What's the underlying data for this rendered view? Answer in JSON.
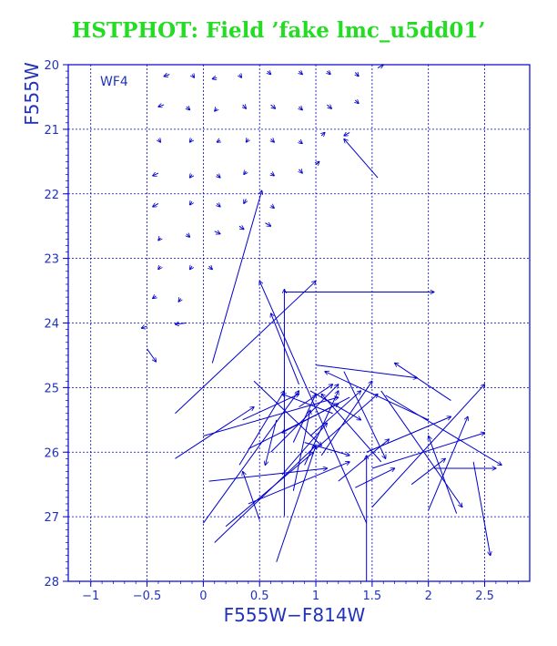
{
  "chart_data": {
    "type": "scatter",
    "title": "HSTPHOT: Field ’fake lmc_u5dd01’",
    "panel_label": "WF4",
    "xlabel": "F555W−F814W",
    "ylabel": "F555W",
    "xlim": [
      -1.2,
      2.9
    ],
    "ylim": [
      28,
      20
    ],
    "y_inverted": true,
    "grid": true,
    "xticks": [
      -1,
      -0.5,
      0,
      0.5,
      1,
      1.5,
      2,
      2.5
    ],
    "xtick_labels": [
      "−1",
      "−0.5",
      "0",
      "0.5",
      "1",
      "1.5",
      "2",
      "2.5"
    ],
    "yticks": [
      20,
      21,
      22,
      23,
      24,
      25,
      26,
      27,
      28
    ],
    "ytick_labels": [
      "20",
      "21",
      "22",
      "23",
      "24",
      "25",
      "26",
      "27",
      "28"
    ],
    "series": [
      {
        "marker": "vector",
        "description_of_values": "each vector goes from input (x0,y0) to measured (x1,y1)",
        "vectors": [
          [
            -0.3,
            20.15,
            -0.35,
            20.18
          ],
          [
            -0.1,
            20.15,
            -0.08,
            20.2
          ],
          [
            0.12,
            20.2,
            0.08,
            20.22
          ],
          [
            0.32,
            20.15,
            0.34,
            20.2
          ],
          [
            0.57,
            20.1,
            0.6,
            20.15
          ],
          [
            0.85,
            20.1,
            0.88,
            20.15
          ],
          [
            1.1,
            20.1,
            1.13,
            20.15
          ],
          [
            1.35,
            20.12,
            1.38,
            20.18
          ],
          [
            1.55,
            20.05,
            1.6,
            20.0
          ],
          [
            -0.35,
            20.62,
            -0.4,
            20.65
          ],
          [
            -0.15,
            20.65,
            -0.12,
            20.7
          ],
          [
            0.12,
            20.68,
            0.1,
            20.72
          ],
          [
            0.35,
            20.62,
            0.38,
            20.68
          ],
          [
            0.6,
            20.62,
            0.64,
            20.68
          ],
          [
            0.85,
            20.65,
            0.88,
            20.7
          ],
          [
            1.1,
            20.62,
            1.14,
            20.68
          ],
          [
            1.35,
            20.55,
            1.38,
            20.6
          ],
          [
            -0.4,
            21.15,
            -0.38,
            21.2
          ],
          [
            -0.1,
            21.15,
            -0.12,
            21.2
          ],
          [
            0.15,
            21.17,
            0.12,
            21.2
          ],
          [
            0.4,
            21.15,
            0.38,
            21.2
          ],
          [
            0.6,
            21.15,
            0.63,
            21.2
          ],
          [
            0.85,
            21.18,
            0.88,
            21.22
          ],
          [
            1.05,
            21.1,
            1.08,
            21.05
          ],
          [
            1.3,
            21.05,
            1.25,
            21.1
          ],
          [
            1.55,
            21.75,
            1.25,
            21.15
          ],
          [
            -0.4,
            21.68,
            -0.45,
            21.72
          ],
          [
            -0.1,
            21.7,
            -0.12,
            21.75
          ],
          [
            0.12,
            21.7,
            0.15,
            21.75
          ],
          [
            0.38,
            21.65,
            0.36,
            21.7
          ],
          [
            0.6,
            21.68,
            0.63,
            21.72
          ],
          [
            0.85,
            21.62,
            0.88,
            21.68
          ],
          [
            1.0,
            21.55,
            1.03,
            21.5
          ],
          [
            -0.4,
            22.15,
            -0.45,
            22.2
          ],
          [
            -0.1,
            22.12,
            -0.12,
            22.17
          ],
          [
            0.12,
            22.15,
            0.15,
            22.2
          ],
          [
            0.38,
            22.08,
            0.36,
            22.15
          ],
          [
            0.6,
            22.18,
            0.63,
            22.22
          ],
          [
            -0.38,
            22.68,
            -0.4,
            22.72
          ],
          [
            -0.15,
            22.62,
            -0.12,
            22.67
          ],
          [
            0.1,
            22.58,
            0.15,
            22.62
          ],
          [
            0.32,
            22.5,
            0.36,
            22.55
          ],
          [
            0.55,
            22.45,
            0.6,
            22.5
          ],
          [
            -0.38,
            23.12,
            -0.4,
            23.17
          ],
          [
            -0.1,
            23.12,
            -0.12,
            23.17
          ],
          [
            0.05,
            23.12,
            0.08,
            23.17
          ],
          [
            -0.42,
            23.58,
            -0.45,
            23.62
          ],
          [
            -0.2,
            23.62,
            -0.22,
            23.67
          ],
          [
            -0.5,
            24.05,
            -0.55,
            24.08
          ],
          [
            -0.15,
            24.0,
            -0.25,
            24.02
          ],
          [
            -0.5,
            24.4,
            -0.42,
            24.6
          ],
          [
            0.08,
            24.62,
            0.52,
            21.95
          ],
          [
            -0.25,
            25.4,
            1.0,
            23.35
          ],
          [
            0.72,
            26.99,
            0.72,
            23.48
          ],
          [
            0.32,
            26.2,
            0.72,
            25.05
          ],
          [
            0.85,
            24.95,
            0.6,
            23.85
          ],
          [
            1.45,
            27.1,
            0.5,
            23.35
          ],
          [
            0.72,
            23.52,
            2.05,
            23.52
          ],
          [
            1.15,
            25.4,
            0.7,
            25.1
          ],
          [
            2.0,
            25.5,
            1.08,
            24.75
          ],
          [
            1.0,
            24.65,
            1.9,
            24.85
          ],
          [
            2.2,
            25.2,
            1.7,
            24.62
          ],
          [
            0.95,
            25.75,
            1.4,
            25.05
          ],
          [
            1.58,
            26.15,
            1.05,
            25.1
          ],
          [
            0.8,
            26.6,
            0.95,
            25.35
          ],
          [
            1.45,
            26.0,
            2.2,
            25.45
          ],
          [
            0.05,
            26.45,
            1.1,
            26.25
          ],
          [
            1.25,
            24.75,
            1.62,
            26.1
          ],
          [
            0.9,
            25.85,
            1.3,
            26.05
          ],
          [
            0.35,
            25.5,
            0.85,
            25.1
          ],
          [
            0.95,
            25.05,
            1.4,
            25.5
          ],
          [
            2.05,
            26.25,
            2.6,
            26.25
          ],
          [
            0.0,
            27.1,
            0.85,
            25.05
          ],
          [
            1.45,
            28.0,
            1.45,
            26.05
          ],
          [
            1.5,
            26.85,
            2.5,
            24.95
          ],
          [
            1.2,
            26.45,
            1.65,
            25.8
          ],
          [
            2.0,
            26.9,
            2.35,
            25.45
          ],
          [
            0.45,
            24.9,
            1.05,
            25.9
          ],
          [
            1.58,
            25.05,
            2.3,
            26.85
          ],
          [
            2.25,
            26.95,
            2.0,
            25.75
          ],
          [
            2.4,
            26.15,
            2.55,
            27.6
          ],
          [
            0.65,
            25.5,
            0.55,
            26.2
          ],
          [
            0.8,
            25.85,
            1.0,
            25.1
          ],
          [
            0.4,
            26.8,
            1.3,
            26.15
          ],
          [
            1.62,
            25.12,
            2.65,
            26.2
          ],
          [
            1.05,
            26.05,
            1.5,
            24.9
          ],
          [
            0.9,
            26.2,
            1.2,
            25.05
          ],
          [
            0.2,
            27.15,
            0.98,
            26.0
          ],
          [
            0.6,
            26.0,
            1.2,
            24.95
          ],
          [
            1.5,
            26.25,
            2.5,
            25.7
          ],
          [
            0.4,
            25.95,
            1.2,
            25.25
          ],
          [
            0.5,
            27.05,
            0.35,
            26.3
          ],
          [
            1.35,
            26.55,
            1.7,
            26.25
          ],
          [
            1.85,
            26.5,
            2.15,
            26.1
          ],
          [
            0.65,
            27.7,
            1.0,
            25.9
          ],
          [
            0.0,
            25.75,
            1.2,
            25.15
          ],
          [
            1.3,
            25.15,
            0.7,
            25.7
          ],
          [
            0.1,
            27.4,
            1.0,
            25.9
          ],
          [
            1.0,
            25.95,
            1.55,
            25.1
          ],
          [
            0.85,
            25.3,
            1.15,
            24.95
          ],
          [
            0.7,
            26.35,
            1.1,
            25.55
          ],
          [
            -0.25,
            26.1,
            0.45,
            25.3
          ]
        ]
      }
    ]
  }
}
